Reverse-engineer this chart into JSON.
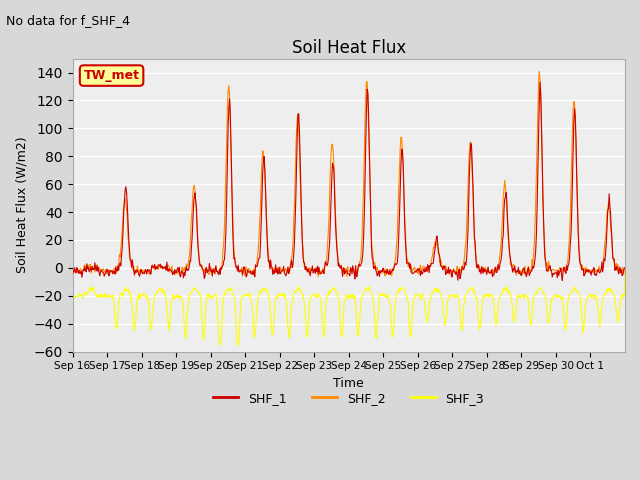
{
  "title": "Soil Heat Flux",
  "subtitle": "No data for f_SHF_4",
  "ylabel": "Soil Heat Flux (W/m2)",
  "xlabel": "Time",
  "ylim": [
    -60,
    150
  ],
  "legend_entries": [
    "SHF_1",
    "SHF_2",
    "SHF_3"
  ],
  "annotation_label": "TW_met",
  "annotation_color": "#cc0000",
  "annotation_bg": "#ffff99",
  "n_days": 16,
  "x_labels": [
    "Sep 16",
    "Sep 17",
    "Sep 18",
    "Sep 19",
    "Sep 20",
    "Sep 21",
    "Sep 22",
    "Sep 23",
    "Sep 24",
    "Sep 25",
    "Sep 26",
    "Sep 27",
    "Sep 28",
    "Sep 29",
    "Sep 30",
    "Oct 1"
  ],
  "shf1_color": "#cc0000",
  "shf2_color": "#ff8800",
  "shf3_color": "#ffff00",
  "peak_scales_1": [
    0,
    60,
    0,
    55,
    120,
    80,
    110,
    75,
    130,
    85,
    20,
    90,
    55,
    130,
    115,
    50
  ],
  "peak_scales_2": [
    0,
    50,
    0,
    60,
    130,
    85,
    110,
    90,
    135,
    95,
    20,
    90,
    60,
    140,
    120,
    45
  ],
  "peak_scales_3_neg": [
    0,
    -25,
    -25,
    -30,
    -45,
    -30,
    -30,
    -30,
    -30,
    -30,
    -20,
    -25,
    -20,
    -20,
    -25,
    -20
  ],
  "yticks": [
    -60,
    -40,
    -20,
    0,
    20,
    40,
    60,
    80,
    100,
    120,
    140
  ]
}
